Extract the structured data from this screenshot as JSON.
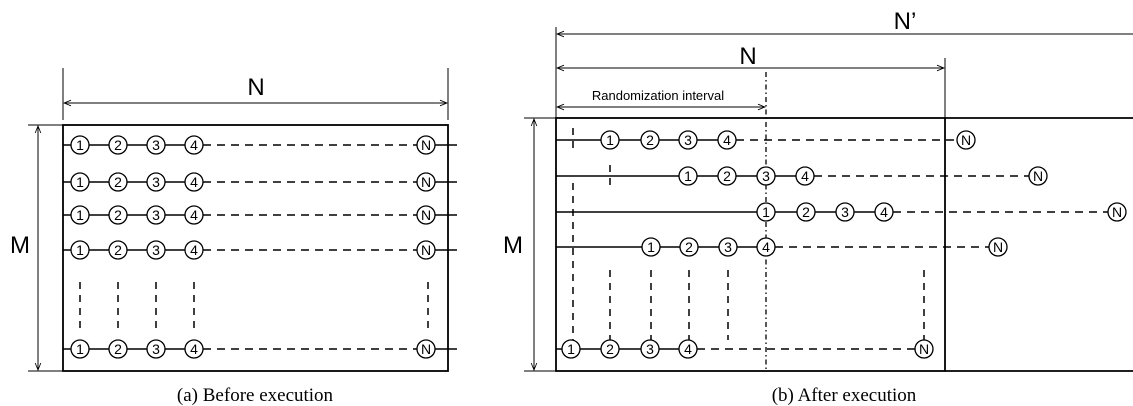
{
  "panel_a": {
    "width_label": "N",
    "height_label": "M",
    "caption": "(a) Before execution",
    "row_labels": [
      "1",
      "2",
      "3",
      "4"
    ],
    "end_label": "N"
  },
  "panel_b": {
    "extended_width_label": "N’",
    "width_label": "N",
    "interval_label": "Randomization interval",
    "height_label": "M",
    "caption": "(b) After execution",
    "row_labels": [
      "1",
      "2",
      "3",
      "4"
    ],
    "end_label": "N"
  }
}
